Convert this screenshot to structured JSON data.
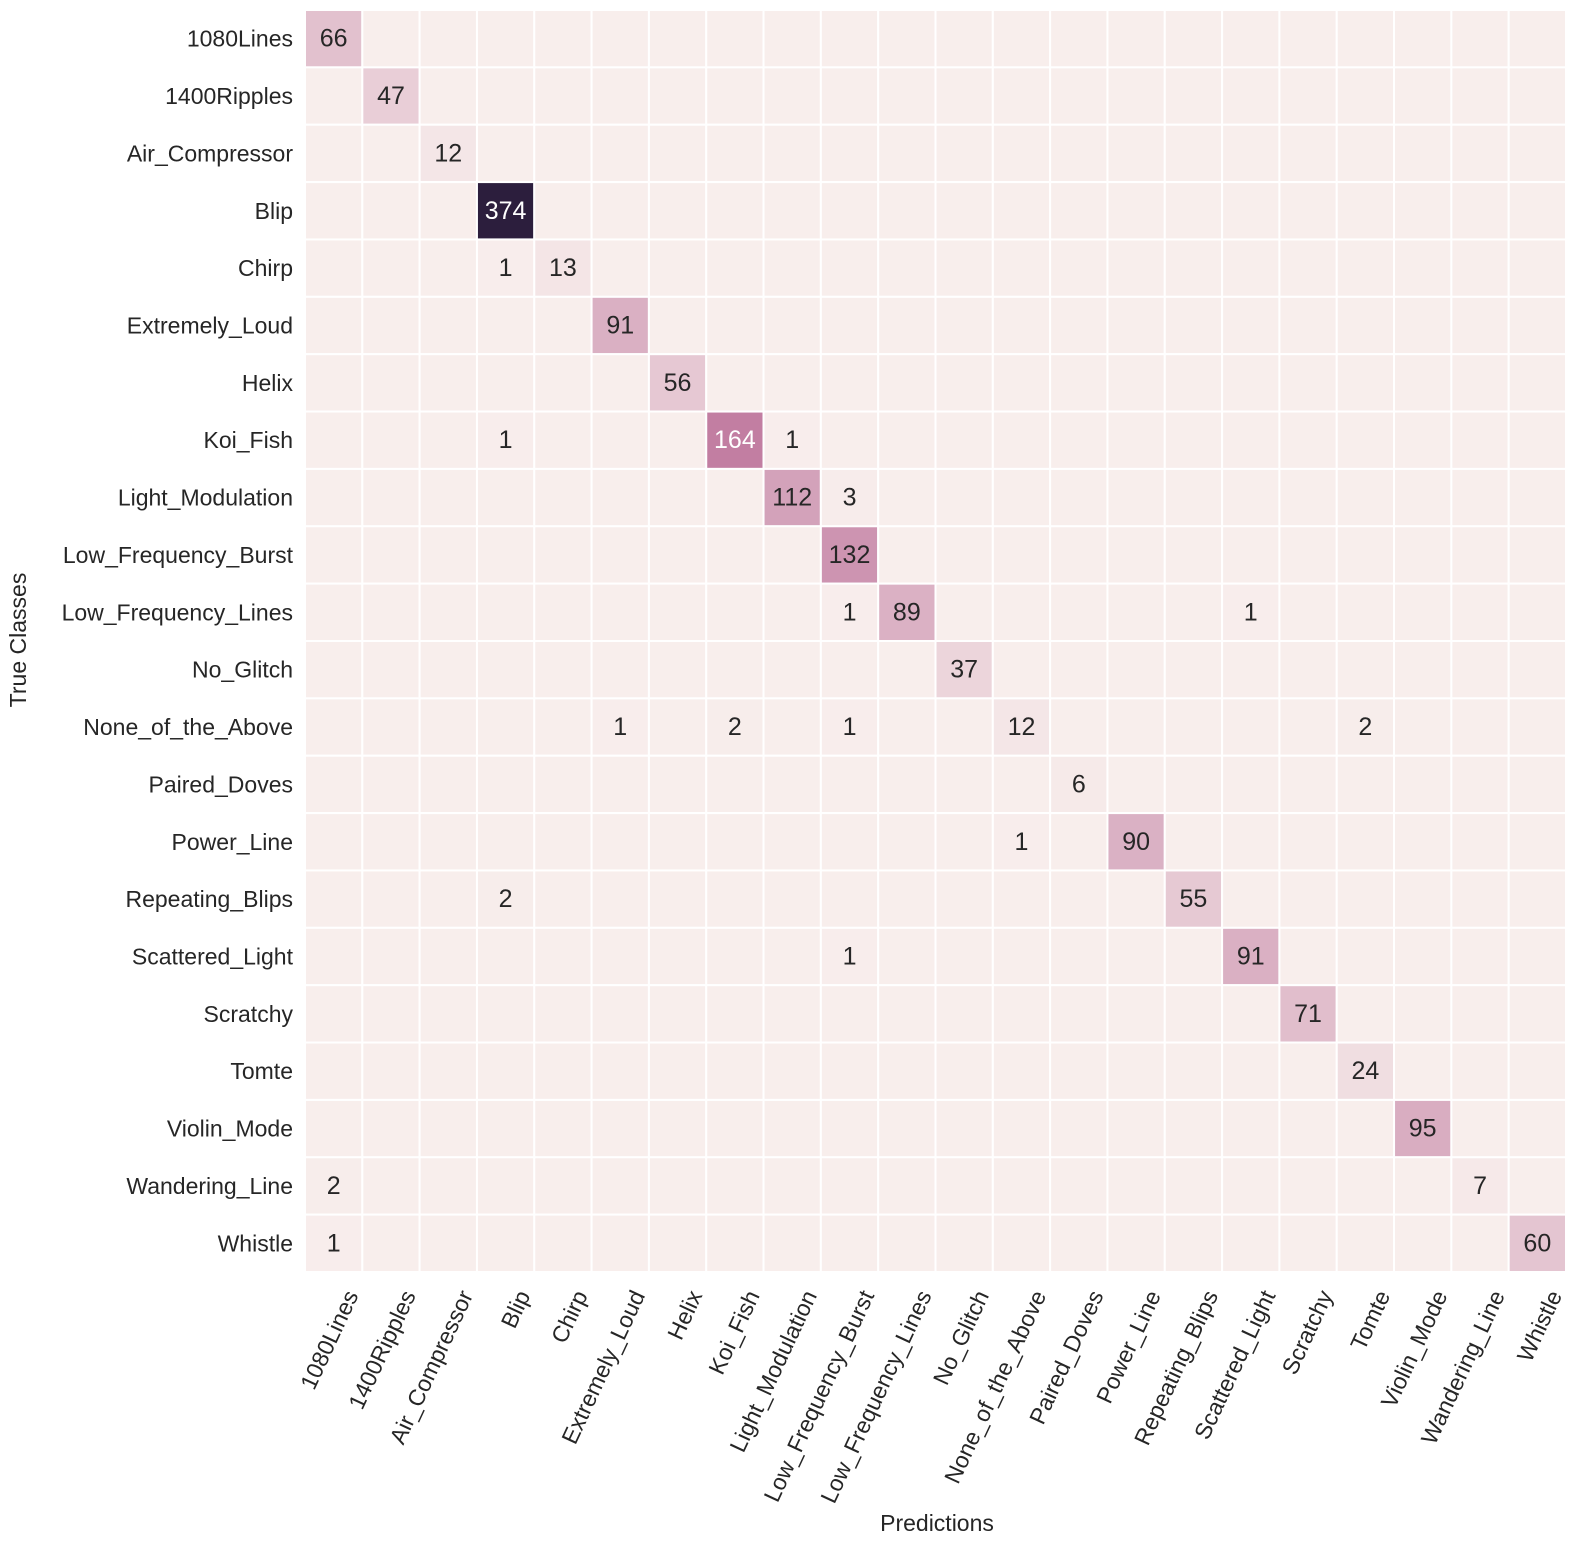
{
  "chart_data": {
    "type": "heatmap",
    "title": "",
    "xlabel": "Predictions",
    "ylabel": "True Classes",
    "x_categories": [
      "1080Lines",
      "1400Ripples",
      "Air_Compressor",
      "Blip",
      "Chirp",
      "Extremely_Loud",
      "Helix",
      "Koi_Fish",
      "Light_Modulation",
      "Low_Frequency_Burst",
      "Low_Frequency_Lines",
      "No_Glitch",
      "None_of_the_Above",
      "Paired_Doves",
      "Power_Line",
      "Repeating_Blips",
      "Scattered_Light",
      "Scratchy",
      "Tomte",
      "Violin_Mode",
      "Wandering_Line",
      "Whistle"
    ],
    "y_categories": [
      "1080Lines",
      "1400Ripples",
      "Air_Compressor",
      "Blip",
      "Chirp",
      "Extremely_Loud",
      "Helix",
      "Koi_Fish",
      "Light_Modulation",
      "Low_Frequency_Burst",
      "Low_Frequency_Lines",
      "No_Glitch",
      "None_of_the_Above",
      "Paired_Doves",
      "Power_Line",
      "Repeating_Blips",
      "Scattered_Light",
      "Scratchy",
      "Tomte",
      "Violin_Mode",
      "Wandering_Line",
      "Whistle"
    ],
    "values": [
      [
        66,
        0,
        0,
        0,
        0,
        0,
        0,
        0,
        0,
        0,
        0,
        0,
        0,
        0,
        0,
        0,
        0,
        0,
        0,
        0,
        0,
        0
      ],
      [
        0,
        47,
        0,
        0,
        0,
        0,
        0,
        0,
        0,
        0,
        0,
        0,
        0,
        0,
        0,
        0,
        0,
        0,
        0,
        0,
        0,
        0
      ],
      [
        0,
        0,
        12,
        0,
        0,
        0,
        0,
        0,
        0,
        0,
        0,
        0,
        0,
        0,
        0,
        0,
        0,
        0,
        0,
        0,
        0,
        0
      ],
      [
        0,
        0,
        0,
        374,
        0,
        0,
        0,
        0,
        0,
        0,
        0,
        0,
        0,
        0,
        0,
        0,
        0,
        0,
        0,
        0,
        0,
        0
      ],
      [
        0,
        0,
        0,
        1,
        13,
        0,
        0,
        0,
        0,
        0,
        0,
        0,
        0,
        0,
        0,
        0,
        0,
        0,
        0,
        0,
        0,
        0
      ],
      [
        0,
        0,
        0,
        0,
        0,
        91,
        0,
        0,
        0,
        0,
        0,
        0,
        0,
        0,
        0,
        0,
        0,
        0,
        0,
        0,
        0,
        0
      ],
      [
        0,
        0,
        0,
        0,
        0,
        0,
        56,
        0,
        0,
        0,
        0,
        0,
        0,
        0,
        0,
        0,
        0,
        0,
        0,
        0,
        0,
        0
      ],
      [
        0,
        0,
        0,
        1,
        0,
        0,
        0,
        164,
        1,
        0,
        0,
        0,
        0,
        0,
        0,
        0,
        0,
        0,
        0,
        0,
        0,
        0
      ],
      [
        0,
        0,
        0,
        0,
        0,
        0,
        0,
        0,
        112,
        3,
        0,
        0,
        0,
        0,
        0,
        0,
        0,
        0,
        0,
        0,
        0,
        0
      ],
      [
        0,
        0,
        0,
        0,
        0,
        0,
        0,
        0,
        0,
        132,
        0,
        0,
        0,
        0,
        0,
        0,
        0,
        0,
        0,
        0,
        0,
        0
      ],
      [
        0,
        0,
        0,
        0,
        0,
        0,
        0,
        0,
        0,
        1,
        89,
        0,
        0,
        0,
        0,
        0,
        1,
        0,
        0,
        0,
        0,
        0
      ],
      [
        0,
        0,
        0,
        0,
        0,
        0,
        0,
        0,
        0,
        0,
        0,
        37,
        0,
        0,
        0,
        0,
        0,
        0,
        0,
        0,
        0,
        0
      ],
      [
        0,
        0,
        0,
        0,
        0,
        1,
        0,
        2,
        0,
        1,
        0,
        0,
        12,
        0,
        0,
        0,
        0,
        0,
        2,
        0,
        0,
        0
      ],
      [
        0,
        0,
        0,
        0,
        0,
        0,
        0,
        0,
        0,
        0,
        0,
        0,
        0,
        6,
        0,
        0,
        0,
        0,
        0,
        0,
        0,
        0
      ],
      [
        0,
        0,
        0,
        0,
        0,
        0,
        0,
        0,
        0,
        0,
        0,
        0,
        1,
        0,
        90,
        0,
        0,
        0,
        0,
        0,
        0,
        0
      ],
      [
        0,
        0,
        0,
        2,
        0,
        0,
        0,
        0,
        0,
        0,
        0,
        0,
        0,
        0,
        0,
        55,
        0,
        0,
        0,
        0,
        0,
        0
      ],
      [
        0,
        0,
        0,
        0,
        0,
        0,
        0,
        0,
        0,
        1,
        0,
        0,
        0,
        0,
        0,
        0,
        91,
        0,
        0,
        0,
        0,
        0
      ],
      [
        0,
        0,
        0,
        0,
        0,
        0,
        0,
        0,
        0,
        0,
        0,
        0,
        0,
        0,
        0,
        0,
        0,
        71,
        0,
        0,
        0,
        0
      ],
      [
        0,
        0,
        0,
        0,
        0,
        0,
        0,
        0,
        0,
        0,
        0,
        0,
        0,
        0,
        0,
        0,
        0,
        0,
        24,
        0,
        0,
        0
      ],
      [
        0,
        0,
        0,
        0,
        0,
        0,
        0,
        0,
        0,
        0,
        0,
        0,
        0,
        0,
        0,
        0,
        0,
        0,
        0,
        95,
        0,
        0
      ],
      [
        2,
        0,
        0,
        0,
        0,
        0,
        0,
        0,
        0,
        0,
        0,
        0,
        0,
        0,
        0,
        0,
        0,
        0,
        0,
        0,
        7,
        0
      ],
      [
        1,
        0,
        0,
        0,
        0,
        0,
        0,
        0,
        0,
        0,
        0,
        0,
        0,
        0,
        0,
        0,
        0,
        0,
        0,
        0,
        0,
        60
      ]
    ],
    "show_zero_labels": false,
    "grid": true,
    "colorbar": false,
    "colors": {
      "low": "#f8eeec",
      "mid": "#c27ea2",
      "high": "#2c1e3d",
      "grid_line": "#ffffff",
      "text_dark": "#262626",
      "text_light": "#ffffff"
    }
  }
}
